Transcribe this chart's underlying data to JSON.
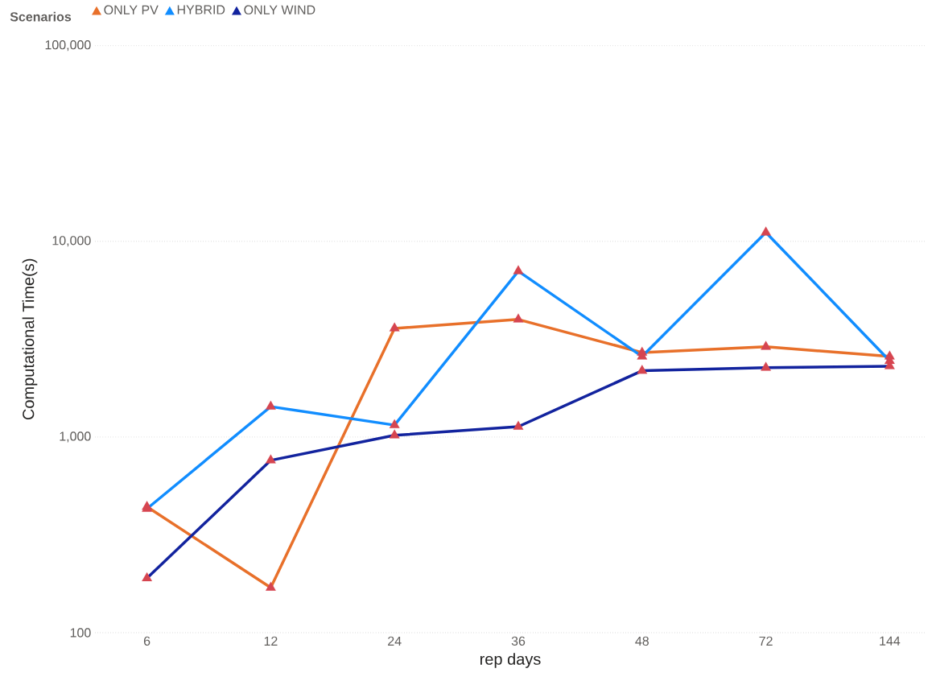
{
  "chart_data": {
    "type": "line",
    "xlabel": "rep days",
    "ylabel": "Computational Time(s)",
    "legend_title": "Scenarios",
    "categories": [
      "6",
      "12",
      "24",
      "36",
      "48",
      "72",
      "144"
    ],
    "series": [
      {
        "name": "ONLY PV",
        "color": "#e8702a",
        "values": [
          440,
          170,
          3590,
          3990,
          2700,
          2890,
          2580
        ]
      },
      {
        "name": "HYBRID",
        "color": "#118dff",
        "values": [
          430,
          1430,
          1150,
          7040,
          2580,
          11100,
          2450
        ]
      },
      {
        "name": "ONLY WIND",
        "color": "#12239e",
        "values": [
          190,
          760,
          1020,
          1130,
          2180,
          2260,
          2300
        ]
      }
    ],
    "log": "y",
    "ylim": [
      100,
      100000
    ],
    "yticks": [
      {
        "value": 100,
        "label": "100"
      },
      {
        "value": 1000,
        "label": "1,000"
      },
      {
        "value": 10000,
        "label": "10,000"
      },
      {
        "value": 100000,
        "label": "100,000"
      }
    ],
    "grid": "y",
    "legend": "top left",
    "marker": "triangle",
    "line_style": "solid"
  }
}
